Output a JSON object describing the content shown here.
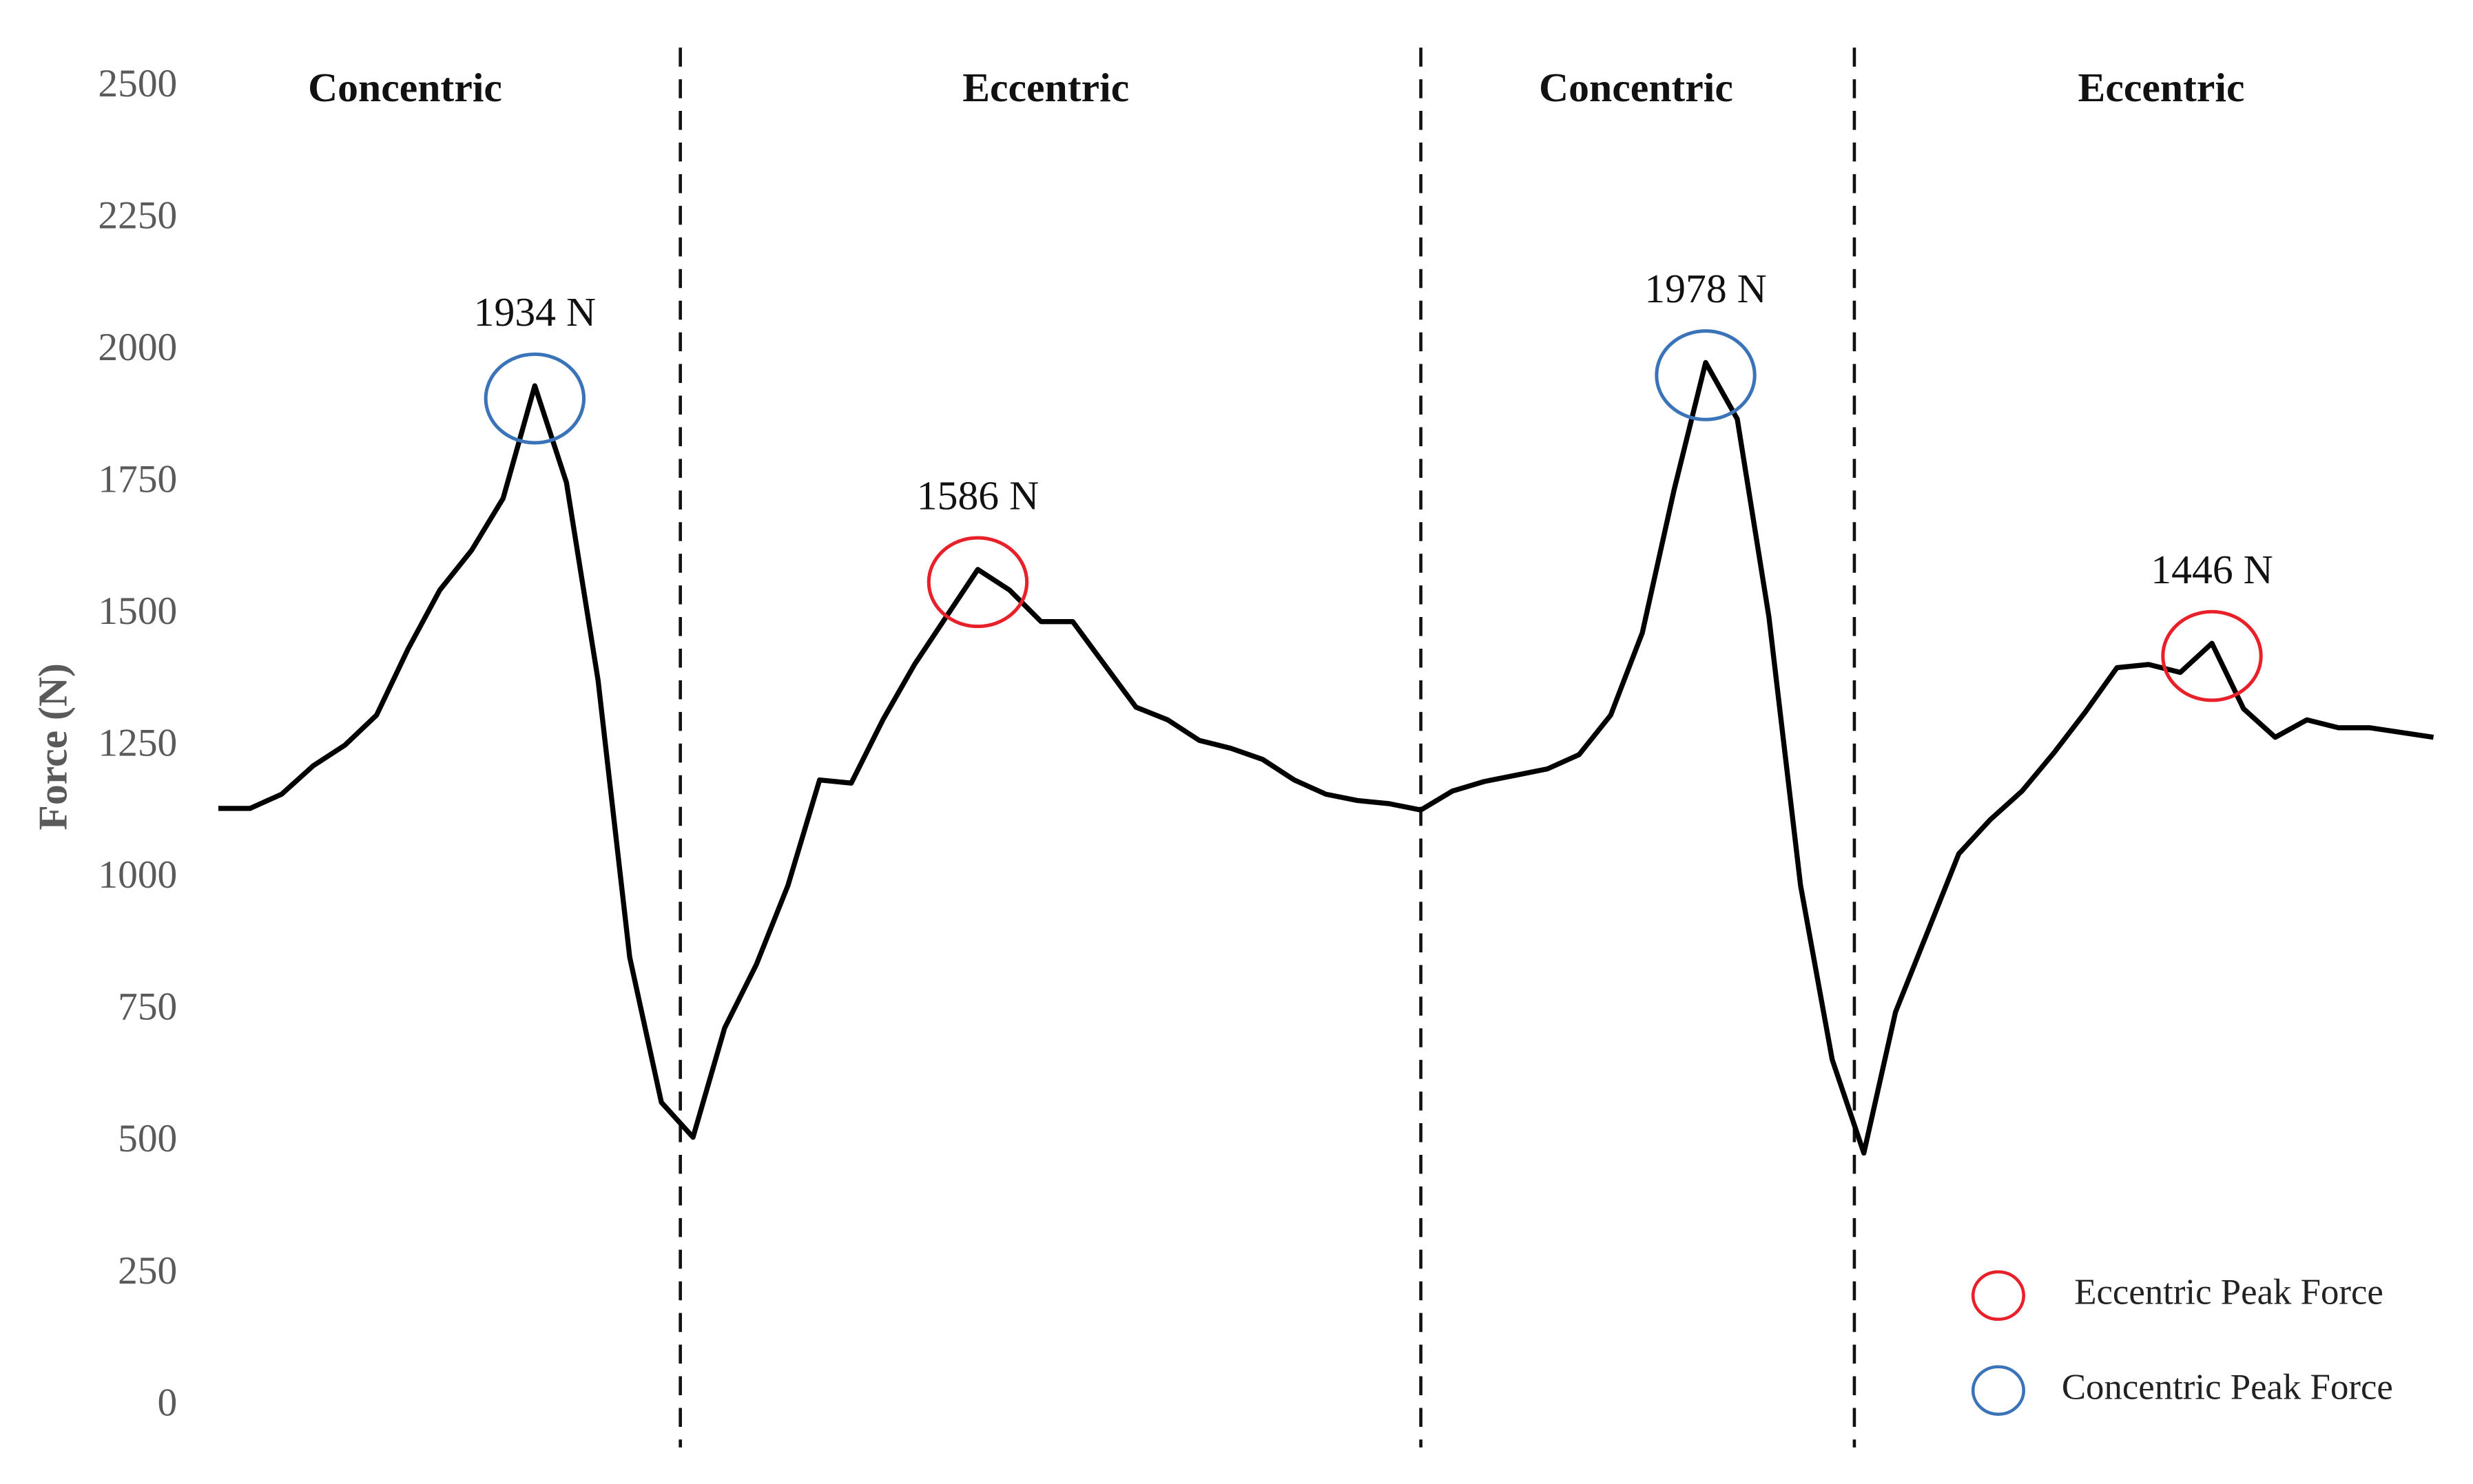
{
  "chart_data": {
    "type": "line",
    "y_label": "Force (N)",
    "ylim": [
      0,
      2500
    ],
    "yticks": [
      0,
      250,
      500,
      750,
      1000,
      1250,
      1500,
      1750,
      2000,
      2250,
      2500
    ],
    "phases": [
      "Concentric",
      "Eccentric",
      "Concentric",
      "Eccentric"
    ],
    "categories": [
      null,
      null,
      null,
      null,
      null,
      null,
      null,
      null,
      null,
      null,
      null,
      null,
      null,
      null,
      null,
      null,
      null,
      null,
      null,
      null,
      null,
      null,
      null,
      null,
      null,
      null,
      null,
      null,
      null,
      null,
      null,
      null,
      null,
      null,
      null,
      null,
      null,
      null,
      null,
      null,
      null,
      null,
      null,
      null,
      null,
      null,
      null,
      null,
      null,
      null,
      null,
      null,
      null,
      null,
      null,
      null,
      null,
      null,
      null,
      null,
      null,
      null,
      null,
      null,
      null,
      null,
      null,
      null,
      null,
      null,
      null
    ],
    "series": [
      {
        "color": "#000000",
        "values": [
          1133,
          1133,
          1160,
          1214,
          1253,
          1310,
          1436,
          1547,
          1622,
          1721,
          1934,
          1751,
          1376,
          851,
          576,
          510,
          717,
          837,
          987,
          1187,
          1181,
          1301,
          1406,
          1496,
          1586,
          1547,
          1487,
          1487,
          1406,
          1325,
          1301,
          1262,
          1247,
          1226,
          1187,
          1160,
          1148,
          1142,
          1130,
          1166,
          1184,
          1196,
          1208,
          1235,
          1310,
          1466,
          1736,
          1978,
          1871,
          1496,
          987,
          657,
          480,
          747,
          897,
          1047,
          1112,
          1166,
          1238,
          1316,
          1400,
          1406,
          1391,
          1446,
          1322,
          1268,
          1301,
          1286,
          1286,
          1277,
          1268
        ]
      }
    ],
    "annotations": [
      {
        "label": "1934 N",
        "value": 1934,
        "color": "#3b73b9"
      },
      {
        "label": "1586 N",
        "value": 1586,
        "color": "#e8202a"
      },
      {
        "label": "1978 N",
        "value": 1978,
        "color": "#3b73b9"
      },
      {
        "label": "1446 N",
        "value": 1446,
        "color": "#e8202a"
      }
    ],
    "legend": [
      {
        "name": "Eccentric Peak Force",
        "color": "#e8202a"
      },
      {
        "name": "Concentric Peak Force",
        "color": "#3b73b9"
      }
    ]
  }
}
